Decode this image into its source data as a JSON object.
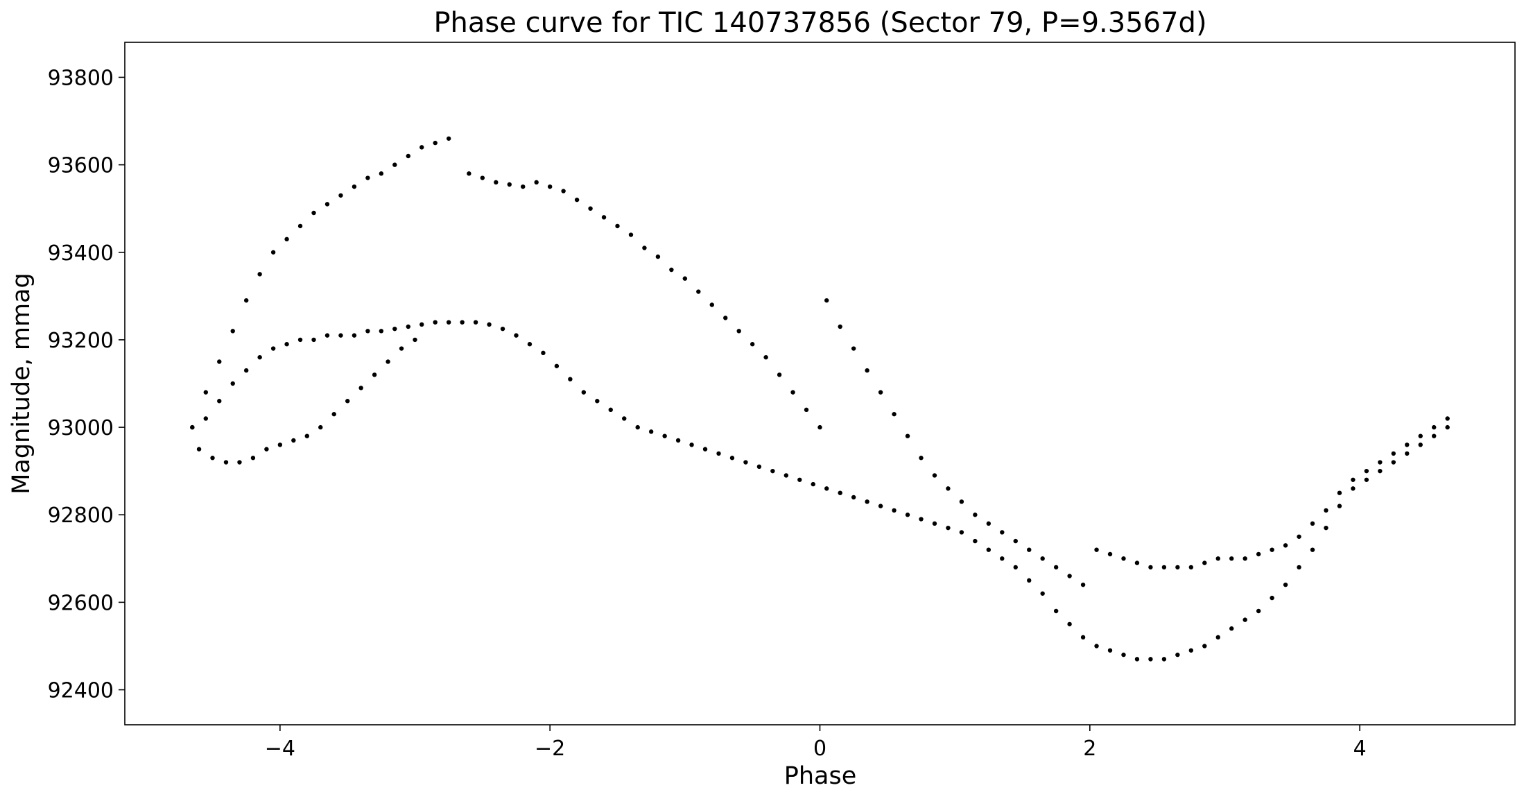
{
  "chart_data": {
    "type": "scatter",
    "title": "Phase curve for TIC 140737856 (Sector 79, P=9.3567d)",
    "xlabel": "Phase",
    "ylabel": "Magnitude, mmag",
    "xlim": [
      -5.15,
      5.15
    ],
    "ylim": [
      92320,
      93880
    ],
    "xticks": [
      -4,
      -2,
      0,
      2,
      4
    ],
    "xtick_labels": [
      "−4",
      "−2",
      "0",
      "2",
      "4"
    ],
    "yticks": [
      92400,
      92600,
      92800,
      93000,
      93200,
      93400,
      93600,
      93800
    ],
    "ytick_labels": [
      "92400",
      "92600",
      "92800",
      "93000",
      "93200",
      "93400",
      "93600",
      "93800"
    ],
    "grid": false,
    "marker_color": "#000000",
    "series": [
      {
        "x": [
          -4.65,
          -4.55,
          -4.45,
          -4.35,
          -4.25,
          -4.15,
          -4.05,
          -3.95,
          -3.85,
          -3.75,
          -3.65,
          -3.55,
          -3.45,
          -3.35,
          -3.25,
          -3.15,
          -3.05,
          -2.95,
          -2.85,
          -2.75,
          -2.6,
          -2.5,
          -2.4,
          -2.3,
          -2.2,
          -2.1,
          -2.0,
          -1.9,
          -1.8,
          -1.7,
          -1.6,
          -1.5,
          -1.4,
          -1.3,
          -1.2,
          -1.1,
          -1.0,
          -0.9,
          -0.8,
          -0.7,
          -0.6,
          -0.5,
          -0.4,
          -0.3,
          -0.2,
          -0.1,
          0.0,
          0.05,
          0.15,
          0.25,
          0.35,
          0.45,
          0.55,
          0.65,
          0.75,
          0.85,
          0.95,
          1.05,
          1.15,
          1.25,
          1.35,
          1.45,
          1.55,
          1.65,
          1.75,
          1.85,
          1.95,
          2.05,
          2.15,
          2.25,
          2.35,
          2.45,
          2.55,
          2.65,
          2.75,
          2.85,
          2.95,
          3.05,
          3.15,
          3.25,
          3.35,
          3.45,
          3.55,
          3.65,
          3.75,
          3.85,
          3.95,
          4.05,
          4.15,
          4.25,
          4.35,
          4.45,
          4.55,
          4.65
        ],
        "y": [
          93000,
          93080,
          93150,
          93220,
          93290,
          93350,
          93400,
          93430,
          93460,
          93490,
          93510,
          93530,
          93550,
          93570,
          93580,
          93600,
          93620,
          93640,
          93650,
          93660,
          93580,
          93570,
          93560,
          93555,
          93550,
          93560,
          93550,
          93540,
          93520,
          93500,
          93480,
          93460,
          93440,
          93410,
          93390,
          93360,
          93340,
          93310,
          93280,
          93250,
          93220,
          93190,
          93160,
          93120,
          93080,
          93040,
          93000,
          93290,
          93230,
          93180,
          93130,
          93080,
          93030,
          92980,
          92930,
          92890,
          92860,
          92830,
          92800,
          92780,
          92760,
          92740,
          92720,
          92700,
          92680,
          92660,
          92640,
          92720,
          92710,
          92700,
          92690,
          92680,
          92680,
          92680,
          92680,
          92690,
          92700,
          92700,
          92700,
          92710,
          92720,
          92730,
          92750,
          92780,
          92810,
          92850,
          92880,
          92900,
          92920,
          92940,
          92960,
          92980,
          93000,
          93020
        ]
      },
      {
        "x": [
          -4.65,
          -4.55,
          -4.45,
          -4.35,
          -4.25,
          -4.15,
          -4.05,
          -3.95,
          -3.85,
          -3.75,
          -3.65,
          -3.55,
          -3.45,
          -3.35,
          -3.25,
          -3.15,
          -3.05,
          -2.95,
          -2.85,
          -2.75,
          -2.65,
          -2.55,
          -2.45,
          -2.35,
          -2.25,
          -2.15,
          -2.05,
          -1.95,
          -1.85,
          -1.75,
          -1.65,
          -1.55,
          -1.45,
          -1.35,
          -1.25,
          -1.15,
          -1.05,
          -0.95,
          -0.85,
          -0.75,
          -0.65,
          -0.55,
          -0.45,
          -0.35,
          -0.25,
          -0.15,
          -0.05,
          0.05,
          0.15,
          0.25,
          0.35,
          0.45,
          0.55,
          0.65,
          0.75,
          0.85,
          0.95,
          1.05,
          1.15,
          1.25,
          1.35,
          1.45,
          1.55,
          1.65,
          1.75,
          1.85,
          1.95,
          2.05,
          2.15,
          2.25,
          2.35,
          2.45,
          2.55,
          2.65,
          2.75,
          2.85,
          2.95,
          3.05,
          3.15,
          3.25,
          3.35,
          3.45,
          3.55,
          3.65,
          3.75,
          3.85,
          3.95,
          4.05,
          4.15,
          4.25,
          4.35,
          4.45,
          4.55,
          4.65
        ],
        "y": [
          93000,
          93020,
          93060,
          93100,
          93130,
          93160,
          93180,
          93190,
          93200,
          93200,
          93210,
          93210,
          93210,
          93220,
          93220,
          93225,
          93230,
          93235,
          93240,
          93240,
          93240,
          93240,
          93235,
          93225,
          93210,
          93190,
          93170,
          93140,
          93110,
          93080,
          93060,
          93040,
          93020,
          93000,
          92990,
          92980,
          92970,
          92960,
          92950,
          92940,
          92930,
          92920,
          92910,
          92900,
          92890,
          92880,
          92870,
          92860,
          92850,
          92840,
          92830,
          92820,
          92810,
          92800,
          92790,
          92780,
          92770,
          92760,
          92740,
          92720,
          92700,
          92680,
          92650,
          92620,
          92580,
          92550,
          92520,
          92500,
          92490,
          92480,
          92470,
          92470,
          92470,
          92480,
          92490,
          92500,
          92520,
          92540,
          92560,
          92580,
          92610,
          92640,
          92680,
          92720,
          92770,
          92820,
          92860,
          92880,
          92900,
          92920,
          92940,
          92960,
          92980,
          93000
        ]
      },
      {
        "x": [
          -4.6,
          -4.5,
          -4.4,
          -4.3,
          -4.2,
          -4.1,
          -4.0,
          -3.9,
          -3.8,
          -3.7,
          -3.6,
          -3.5,
          -3.4,
          -3.3,
          -3.2,
          -3.1,
          -3.0
        ],
        "y": [
          92950,
          92930,
          92920,
          92920,
          92930,
          92950,
          92960,
          92970,
          92980,
          93000,
          93030,
          93060,
          93090,
          93120,
          93150,
          93180,
          93200
        ]
      }
    ]
  }
}
